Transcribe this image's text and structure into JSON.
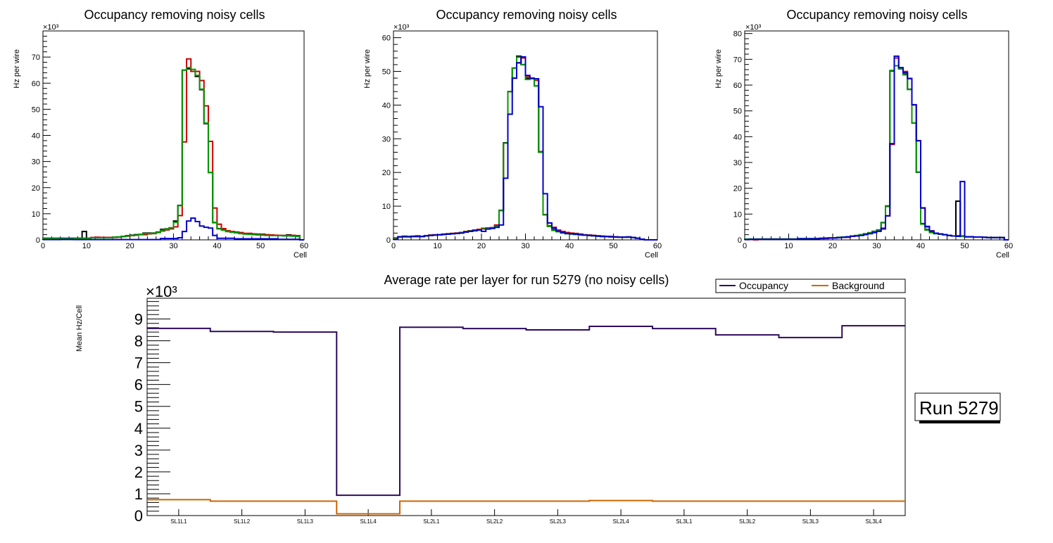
{
  "chart_data": [
    {
      "type": "line",
      "style": "step-histogram",
      "title": "Occupancy removing noisy cells",
      "xlabel": "Cell",
      "ylabel": "Hz per wire",
      "y_multiplier": "×10³",
      "xlim": [
        0,
        60
      ],
      "ylim": [
        0,
        80
      ],
      "xticks": [
        0,
        10,
        20,
        30,
        40,
        50,
        60
      ],
      "yticks": [
        0,
        10,
        20,
        30,
        40,
        50,
        60,
        70
      ],
      "grid": false,
      "x_bins_start": 0,
      "series": [
        {
          "name": "black",
          "color": "#000000",
          "values": [
            0.6,
            0.6,
            0.6,
            0.6,
            0.6,
            0.6,
            0.6,
            0.6,
            0.6,
            3.2,
            0.6,
            0.8,
            0.9,
            0.9,
            0.9,
            0.9,
            1.0,
            1.1,
            1.3,
            1.6,
            1.8,
            2.0,
            2.1,
            2.6,
            2.6,
            2.6,
            3.0,
            4.0,
            4.2,
            4.6,
            7.2,
            13.2,
            65.0,
            65.5,
            64.5,
            62.6,
            57.5,
            44.5,
            25.8,
            6.6,
            4.3,
            3.8,
            3.2,
            3.0,
            2.8,
            2.5,
            2.4,
            2.3,
            2.2,
            2.2,
            2.0,
            1.9,
            1.8,
            1.7,
            1.7,
            1.7,
            1.9,
            1.7,
            1.6,
            0.0
          ]
        },
        {
          "name": "red",
          "color": "#cc0000",
          "values": [
            0.6,
            0.6,
            0.6,
            0.6,
            0.6,
            0.6,
            0.6,
            0.6,
            0.6,
            0.6,
            0.6,
            0.9,
            1.0,
            0.9,
            0.9,
            0.9,
            0.9,
            1.0,
            1.2,
            1.4,
            1.6,
            1.8,
            2.0,
            2.0,
            2.3,
            2.4,
            2.8,
            3.4,
            3.8,
            4.2,
            5.0,
            9.3,
            37.5,
            69.3,
            64.5,
            64.5,
            61.0,
            51.3,
            37.7,
            12.2,
            6.0,
            4.3,
            3.5,
            3.2,
            3.0,
            2.8,
            2.5,
            2.5,
            2.3,
            2.2,
            2.2,
            2.0,
            1.9,
            1.8,
            1.7,
            1.6,
            1.7,
            1.7,
            1.6,
            0.0
          ]
        },
        {
          "name": "green",
          "color": "#009900",
          "values": [
            0.6,
            0.6,
            0.6,
            0.6,
            0.6,
            0.6,
            0.6,
            0.6,
            0.6,
            0.6,
            0.6,
            0.8,
            0.8,
            0.8,
            0.8,
            0.8,
            1.0,
            1.1,
            1.2,
            1.5,
            1.7,
            1.8,
            2.0,
            2.4,
            2.4,
            2.5,
            2.9,
            3.7,
            4.1,
            4.6,
            6.7,
            13.1,
            65.0,
            66.0,
            65.3,
            63.0,
            57.7,
            44.7,
            25.8,
            6.7,
            4.2,
            3.7,
            3.2,
            2.9,
            2.7,
            2.4,
            2.2,
            2.1,
            2.0,
            1.9,
            1.8,
            1.7,
            1.6,
            1.6,
            1.6,
            1.5,
            1.5,
            1.4,
            1.3,
            0.0
          ]
        },
        {
          "name": "blue",
          "color": "#0000cc",
          "values": [
            0.1,
            0.1,
            0.1,
            0.1,
            0.2,
            0.2,
            0.2,
            0.1,
            0.1,
            0.1,
            0.1,
            0.1,
            0.1,
            0.1,
            0.1,
            0.1,
            0.1,
            0.1,
            0.1,
            0.1,
            0.1,
            0.1,
            0.1,
            0.1,
            0.1,
            0.1,
            0.1,
            0.5,
            0.5,
            0.5,
            0.5,
            0.8,
            3.2,
            7.2,
            8.3,
            7.0,
            5.3,
            4.8,
            4.5,
            1.7,
            0.6,
            0.6,
            0.6,
            0.6,
            0.4,
            0.4,
            0.4,
            0.4,
            0.4,
            0.4,
            0.4,
            0.4,
            0.4,
            0.4,
            0.2,
            0.2,
            0.2,
            0.2,
            0.2,
            0.0
          ]
        }
      ]
    },
    {
      "type": "line",
      "style": "step-histogram",
      "title": "Occupancy removing noisy cells",
      "xlabel": "Cell",
      "ylabel": "Hz per wire",
      "y_multiplier": "×10³",
      "xlim": [
        0,
        60
      ],
      "ylim": [
        0,
        62
      ],
      "xticks": [
        0,
        10,
        20,
        30,
        40,
        50,
        60
      ],
      "yticks": [
        0,
        10,
        20,
        30,
        40,
        50,
        60
      ],
      "grid": false,
      "x_bins_start": 0,
      "series": [
        {
          "name": "black",
          "color": "#000000",
          "values": [
            0.5,
            0.9,
            1.1,
            1.0,
            1.0,
            1.0,
            1.0,
            1.2,
            1.4,
            1.5,
            1.5,
            1.7,
            1.8,
            1.9,
            2.0,
            2.2,
            2.5,
            2.7,
            2.9,
            3.0,
            3.4,
            3.5,
            3.6,
            4.2,
            8.7,
            28.8,
            44.0,
            51.0,
            54.5,
            52.0,
            48.0,
            47.8,
            45.7,
            26.0,
            7.5,
            4.0,
            3.0,
            2.5,
            2.2,
            2.0,
            1.8,
            1.8,
            1.7,
            1.5,
            1.4,
            1.3,
            1.2,
            1.1,
            1.0,
            1.0,
            0.9,
            0.8,
            0.8,
            0.9,
            0.7,
            0.5,
            0.2,
            0.0,
            0.0,
            0.0
          ]
        },
        {
          "name": "red",
          "color": "#cc0000",
          "values": [
            0.5,
            0.9,
            1.0,
            1.0,
            1.1,
            1.2,
            1.0,
            1.2,
            1.4,
            1.5,
            1.5,
            1.7,
            1.8,
            1.9,
            2.0,
            2.2,
            2.5,
            2.7,
            2.9,
            3.1,
            3.4,
            3.5,
            3.6,
            4.4,
            8.8,
            28.7,
            44.0,
            48.0,
            52.6,
            54.0,
            48.5,
            48.0,
            47.3,
            26.2,
            7.5,
            4.2,
            3.7,
            2.9,
            2.5,
            2.2,
            2.0,
            1.9,
            1.7,
            1.5,
            1.4,
            1.3,
            1.2,
            1.1,
            1.0,
            1.0,
            0.9,
            0.8,
            0.8,
            0.8,
            0.7,
            0.5,
            0.2,
            0.0,
            0.0,
            0.0
          ]
        },
        {
          "name": "green",
          "color": "#009900",
          "values": [
            0.6,
            0.9,
            1.0,
            1.0,
            1.0,
            1.0,
            1.0,
            1.2,
            1.3,
            1.4,
            1.5,
            1.6,
            1.7,
            1.8,
            1.9,
            2.1,
            2.4,
            2.6,
            2.8,
            2.9,
            3.2,
            3.4,
            3.5,
            4.0,
            8.7,
            28.7,
            44.0,
            51.0,
            54.2,
            52.0,
            47.6,
            47.8,
            45.7,
            26.0,
            7.4,
            4.0,
            2.8,
            2.4,
            2.0,
            1.8,
            1.7,
            1.6,
            1.5,
            1.4,
            1.3,
            1.2,
            1.1,
            1.0,
            1.0,
            0.9,
            0.8,
            0.8,
            0.8,
            0.8,
            0.7,
            0.5,
            0.2,
            0.0,
            0.0,
            0.0
          ]
        },
        {
          "name": "blue",
          "color": "#0000cc",
          "values": [
            0.1,
            0.9,
            0.9,
            0.9,
            1.0,
            1.0,
            1.0,
            1.2,
            1.3,
            1.4,
            1.5,
            1.6,
            1.7,
            1.8,
            1.9,
            2.0,
            2.3,
            2.5,
            2.7,
            2.9,
            2.5,
            3.2,
            3.4,
            3.7,
            4.4,
            18.3,
            37.3,
            48.0,
            52.5,
            54.3,
            48.8,
            48.0,
            47.8,
            39.5,
            13.7,
            5.0,
            3.5,
            2.6,
            2.2,
            1.9,
            1.8,
            1.7,
            1.5,
            1.4,
            1.3,
            1.2,
            1.1,
            1.0,
            1.0,
            0.9,
            0.8,
            0.8,
            0.8,
            0.8,
            0.7,
            0.5,
            0.2,
            0.0,
            0.0,
            0.0
          ]
        }
      ]
    },
    {
      "type": "line",
      "style": "step-histogram",
      "title": "Occupancy removing noisy cells",
      "xlabel": "Cell",
      "ylabel": "Hz per wire",
      "y_multiplier": "×10³",
      "xlim": [
        0,
        60
      ],
      "ylim": [
        0,
        81
      ],
      "xticks": [
        0,
        10,
        20,
        30,
        40,
        50,
        60
      ],
      "yticks": [
        0,
        10,
        20,
        30,
        40,
        50,
        60,
        70,
        80
      ],
      "grid": false,
      "x_bins_start": 0,
      "series": [
        {
          "name": "black",
          "color": "#000000",
          "values": [
            0.2,
            0.3,
            0.3,
            0.3,
            0.3,
            0.3,
            0.3,
            0.3,
            0.3,
            0.3,
            0.3,
            0.3,
            0.3,
            0.4,
            0.4,
            0.4,
            0.4,
            0.5,
            0.6,
            0.7,
            0.8,
            0.9,
            1.1,
            1.2,
            1.4,
            1.6,
            1.9,
            2.3,
            2.7,
            3.3,
            3.8,
            6.7,
            13.0,
            65.5,
            67.5,
            66.3,
            64.2,
            58.4,
            45.3,
            26.2,
            6.3,
            4.0,
            3.0,
            2.5,
            2.2,
            2.0,
            1.7,
            1.5,
            15.0,
            1.5,
            1.2,
            1.2,
            1.1,
            1.1,
            1.0,
            0.9,
            0.9,
            0.9,
            0.9,
            0.0
          ]
        },
        {
          "name": "red",
          "color": "#cc0000",
          "values": [
            0.1,
            0.2,
            0.0,
            0.2,
            0.3,
            0.3,
            0.3,
            0.3,
            0.3,
            0.3,
            0.3,
            0.3,
            0.4,
            0.4,
            0.4,
            0.4,
            0.5,
            0.5,
            0.5,
            0.7,
            0.8,
            0.9,
            1.0,
            1.0,
            1.4,
            1.6,
            1.8,
            2.1,
            2.6,
            3.0,
            3.6,
            4.2,
            9.3,
            37.0,
            70.5,
            66.5,
            65.3,
            62.5,
            52.3,
            38.5,
            12.3,
            5.0,
            3.5,
            2.6,
            2.3,
            2.0,
            1.7,
            1.5,
            1.6,
            1.4,
            1.2,
            1.2,
            1.1,
            1.1,
            1.0,
            0.9,
            0.9,
            0.9,
            0.9,
            0.0
          ]
        },
        {
          "name": "green",
          "color": "#009900",
          "values": [
            0.3,
            0.3,
            0.3,
            0.3,
            0.3,
            0.3,
            0.3,
            0.3,
            0.3,
            0.3,
            0.3,
            0.3,
            0.5,
            0.5,
            0.5,
            0.5,
            0.5,
            0.6,
            0.7,
            0.8,
            0.8,
            1.0,
            1.1,
            1.2,
            1.5,
            1.7,
            2.0,
            2.4,
            2.8,
            3.2,
            3.9,
            6.6,
            13.2,
            65.7,
            67.5,
            66.3,
            64.0,
            58.3,
            45.3,
            26.3,
            6.1,
            3.8,
            2.8,
            2.4,
            2.2,
            2.0,
            1.7,
            1.5,
            1.4,
            1.3,
            1.2,
            1.2,
            1.1,
            1.1,
            1.0,
            0.9,
            0.9,
            0.9,
            0.9,
            0.0
          ]
        },
        {
          "name": "blue",
          "color": "#0000cc",
          "values": [
            0.1,
            0.2,
            0.2,
            0.2,
            0.2,
            0.2,
            0.2,
            0.2,
            0.2,
            0.2,
            0.2,
            0.2,
            0.4,
            0.4,
            0.4,
            0.4,
            0.4,
            0.6,
            0.6,
            0.7,
            0.7,
            0.9,
            1.0,
            1.1,
            1.4,
            1.5,
            1.7,
            2.0,
            2.4,
            2.8,
            3.3,
            4.5,
            9.3,
            37.3,
            71.2,
            66.8,
            64.8,
            62.6,
            52.4,
            38.4,
            12.4,
            5.2,
            3.4,
            2.6,
            2.3,
            2.0,
            1.7,
            1.5,
            1.4,
            22.6,
            1.2,
            1.2,
            1.1,
            1.1,
            1.0,
            0.9,
            0.9,
            0.9,
            0.9,
            0.0
          ]
        }
      ]
    },
    {
      "type": "line",
      "style": "step-histogram",
      "title": "Average rate per layer for run 5279 (no noisy cells)",
      "xlabel": "",
      "ylabel": "Mean Hz/Cell",
      "y_multiplier": "×10³",
      "categories": [
        "SL1L1",
        "SL1L2",
        "SL1L3",
        "SL1L4",
        "SL2L1",
        "SL2L2",
        "SL2L3",
        "SL2L4",
        "SL3L1",
        "SL3L2",
        "SL3L3",
        "SL3L4"
      ],
      "ylim": [
        0,
        9.95
      ],
      "yticks": [
        0,
        1,
        2,
        3,
        4,
        5,
        6,
        7,
        8,
        9
      ],
      "grid": false,
      "legend": {
        "placement": "top-right",
        "entries": [
          {
            "label": "Occupancy",
            "color": "#2e0a5e"
          },
          {
            "label": "Background",
            "color": "#cc6600"
          }
        ]
      },
      "series": [
        {
          "name": "Occupancy",
          "color": "#2e0a5e",
          "values": [
            8.57,
            8.43,
            8.4,
            0.93,
            8.62,
            8.56,
            8.5,
            8.66,
            8.56,
            8.27,
            8.15,
            8.69
          ]
        },
        {
          "name": "Background",
          "color": "#cc6600",
          "values": [
            0.73,
            0.66,
            0.66,
            0.08,
            0.66,
            0.66,
            0.66,
            0.69,
            0.66,
            0.66,
            0.66,
            0.66
          ]
        }
      ]
    }
  ],
  "run_label": "Run 5279"
}
